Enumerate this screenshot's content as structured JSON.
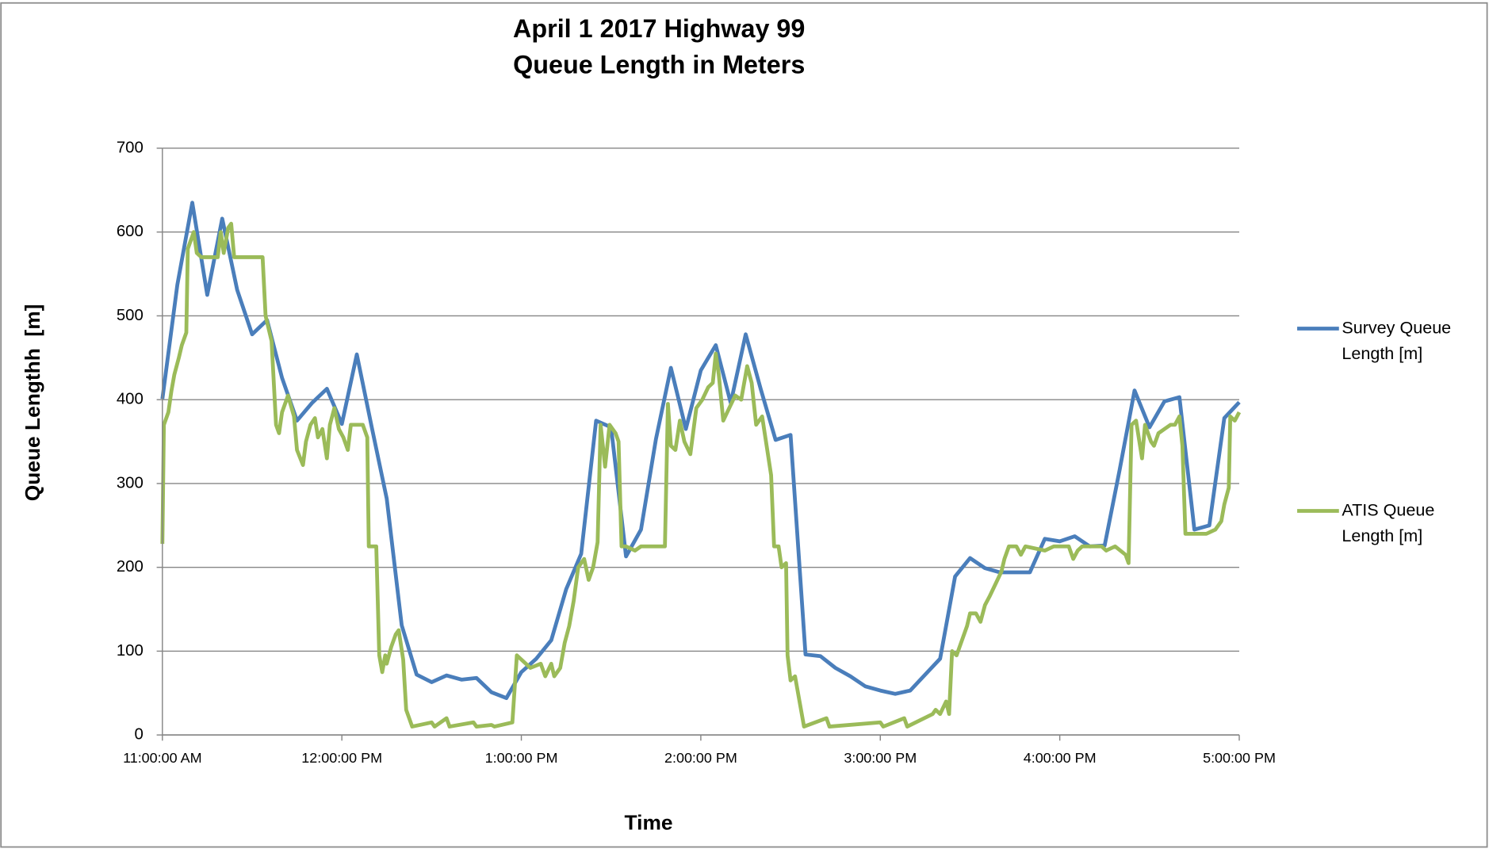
{
  "chart_data": {
    "type": "line",
    "title": [
      "April 1 2017 Highway 99",
      "Queue Length in Meters"
    ],
    "x_label": "Time",
    "y_label": "Queue Lengthh  [m]",
    "xlim": [
      "11:00:00",
      "17:00:00"
    ],
    "xticks": [
      {
        "value": "11:00:00",
        "label": "11:00:00 AM"
      },
      {
        "value": "12:00:00",
        "label": "12:00:00 PM"
      },
      {
        "value": "13:00:00",
        "label": "1:00:00 PM"
      },
      {
        "value": "14:00:00",
        "label": "2:00:00 PM"
      },
      {
        "value": "15:00:00",
        "label": "3:00:00 PM"
      },
      {
        "value": "16:00:00",
        "label": "4:00:00 PM"
      },
      {
        "value": "17:00:00",
        "label": "5:00:00 PM"
      }
    ],
    "ylim": [
      0,
      700
    ],
    "yticks": [
      0,
      100,
      200,
      300,
      400,
      500,
      600,
      700
    ],
    "grid": true,
    "legend": "right",
    "series": [
      {
        "name": "Survey Queue Length [m]",
        "color": "#4a7ebb",
        "x": [
          "11:00:00",
          "11:05:00",
          "11:10:00",
          "11:15:00",
          "11:20:00",
          "11:25:00",
          "11:30:00",
          "11:35:00",
          "11:40:00",
          "11:45:00",
          "11:50:00",
          "11:55:00",
          "12:00:00",
          "12:05:00",
          "12:10:00",
          "12:15:00",
          "12:20:00",
          "12:25:00",
          "12:30:00",
          "12:35:00",
          "12:40:00",
          "12:45:00",
          "12:50:00",
          "12:55:00",
          "13:00:00",
          "13:05:00",
          "13:10:00",
          "13:15:00",
          "13:20:00",
          "13:25:00",
          "13:30:00",
          "13:35:00",
          "13:40:00",
          "13:45:00",
          "13:50:00",
          "13:55:00",
          "14:00:00",
          "14:05:00",
          "14:10:00",
          "14:15:00",
          "14:20:00",
          "14:25:00",
          "14:30:00",
          "14:35:00",
          "14:40:00",
          "14:45:00",
          "14:50:00",
          "14:55:00",
          "15:00:00",
          "15:05:00",
          "15:10:00",
          "15:15:00",
          "15:20:00",
          "15:25:00",
          "15:30:00",
          "15:35:00",
          "15:40:00",
          "15:45:00",
          "15:50:00",
          "15:55:00",
          "16:00:00",
          "16:05:00",
          "16:10:00",
          "16:15:00",
          "16:20:00",
          "16:25:00",
          "16:30:00",
          "16:35:00",
          "16:40:00",
          "16:45:00",
          "16:50:00",
          "16:55:00",
          "17:00:00"
        ],
        "values": [
          401,
          537,
          635,
          525,
          616,
          531,
          478,
          495,
          426,
          375,
          396,
          413,
          371,
          454,
          367,
          282,
          131,
          72,
          63,
          71,
          66,
          68,
          51,
          44,
          75,
          91,
          113,
          174,
          216,
          375,
          367,
          213,
          245,
          353,
          438,
          365,
          435,
          465,
          396,
          478,
          413,
          352,
          358,
          96,
          94,
          80,
          70,
          58,
          53,
          49,
          53,
          72,
          91,
          189,
          211,
          199,
          194,
          194,
          194,
          234,
          231,
          237,
          225,
          226,
          316,
          411,
          367,
          398,
          403,
          245,
          250,
          378,
          397
        ]
      },
      {
        "name": "ATIS Queue Length [m]",
        "color": "#9bbb59",
        "x": [
          "11:00:00",
          "11:00:30",
          "11:02:00",
          "11:03:00",
          "11:04:00",
          "11:05:30",
          "11:06:30",
          "11:08:00",
          "11:08:30",
          "11:10:30",
          "11:11:30",
          "11:13:00",
          "11:18:30",
          "11:19:30",
          "11:20:30",
          "11:22:00",
          "11:23:00",
          "11:24:00",
          "11:33:30",
          "11:34:30",
          "11:36:30",
          "11:38:00",
          "11:39:00",
          "11:40:00",
          "11:42:00",
          "11:44:00",
          "11:45:00",
          "11:47:00",
          "11:48:00",
          "11:49:30",
          "11:51:00",
          "11:52:00",
          "11:53:30",
          "11:55:00",
          "11:56:00",
          "11:57:30",
          "11:59:00",
          "12:00:30",
          "12:02:00",
          "12:03:00",
          "12:07:00",
          "12:08:30",
          "12:09:00",
          "12:11:30",
          "12:12:30",
          "12:13:30",
          "12:14:30",
          "12:15:00",
          "12:16:30",
          "12:18:00",
          "12:19:00",
          "12:20:30",
          "12:21:30",
          "12:22:30",
          "12:23:30",
          "12:30:00",
          "12:31:00",
          "12:35:00",
          "12:36:00",
          "12:44:00",
          "12:45:00",
          "12:50:00",
          "12:51:00",
          "12:57:00",
          "12:58:30",
          "13:00:00",
          "13:03:00",
          "13:06:30",
          "13:08:00",
          "13:10:00",
          "13:11:00",
          "13:13:00",
          "13:14:30",
          "13:16:00",
          "13:17:30",
          "13:19:00",
          "13:21:00",
          "13:22:30",
          "13:24:00",
          "13:25:30",
          "13:26:30",
          "13:28:00",
          "13:29:30",
          "13:31:30",
          "13:32:30",
          "13:33:30",
          "13:35:00",
          "13:38:00",
          "13:40:00",
          "13:48:00",
          "13:49:00",
          "13:50:00",
          "13:51:30",
          "13:53:00",
          "13:54:30",
          "13:56:30",
          "13:58:30",
          "14:00:30",
          "14:02:30",
          "14:04:00",
          "14:05:00",
          "14:06:00",
          "14:07:30",
          "14:09:30",
          "14:11:30",
          "14:13:30",
          "14:15:30",
          "14:17:00",
          "14:18:30",
          "14:20:30",
          "14:22:00",
          "14:23:30",
          "14:24:30",
          "14:26:00",
          "14:27:00",
          "14:28:30",
          "14:29:00",
          "14:30:00",
          "14:31:30",
          "14:33:00",
          "14:34:30",
          "14:42:00",
          "14:43:00",
          "15:00:00",
          "15:01:00",
          "15:08:00",
          "15:09:00",
          "15:17:30",
          "15:18:30",
          "15:20:00",
          "15:22:00",
          "15:23:00",
          "15:24:00",
          "15:25:30",
          "15:27:30",
          "15:29:00",
          "15:30:00",
          "15:32:00",
          "15:33:30",
          "15:35:00",
          "15:36:30",
          "15:38:30",
          "15:40:30",
          "15:41:30",
          "15:43:00",
          "15:45:30",
          "15:47:00",
          "15:48:30",
          "15:55:00",
          "15:58:00",
          "16:03:00",
          "16:04:30",
          "16:06:00",
          "16:07:30",
          "16:14:00",
          "16:15:30",
          "16:18:30",
          "16:22:00",
          "16:23:00",
          "16:24:00",
          "16:25:30",
          "16:27:30",
          "16:28:30",
          "16:30:30",
          "16:31:30",
          "16:33:00",
          "16:35:00",
          "16:37:00",
          "16:38:30",
          "16:40:00",
          "16:41:00",
          "16:42:00",
          "16:44:00",
          "16:49:00",
          "16:52:00",
          "16:54:00",
          "16:55:00",
          "16:56:30",
          "16:57:00",
          "16:58:30",
          "17:00:00"
        ],
        "values": [
          228,
          370,
          385,
          410,
          430,
          450,
          465,
          480,
          580,
          600,
          575,
          570,
          570,
          600,
          575,
          605,
          610,
          570,
          570,
          500,
          470,
          370,
          360,
          385,
          405,
          380,
          340,
          322,
          350,
          370,
          378,
          355,
          365,
          330,
          370,
          390,
          365,
          355,
          340,
          370,
          370,
          355,
          225,
          225,
          95,
          75,
          95,
          85,
          105,
          120,
          125,
          90,
          30,
          20,
          10,
          15,
          10,
          20,
          10,
          15,
          10,
          12,
          10,
          15,
          95,
          90,
          80,
          85,
          70,
          85,
          70,
          80,
          110,
          130,
          160,
          200,
          210,
          185,
          200,
          230,
          370,
          320,
          370,
          360,
          350,
          225,
          225,
          220,
          225,
          225,
          395,
          345,
          340,
          375,
          350,
          335,
          390,
          400,
          415,
          420,
          455,
          430,
          375,
          390,
          405,
          400,
          440,
          420,
          370,
          380,
          345,
          310,
          225,
          225,
          200,
          205,
          95,
          65,
          70,
          40,
          10,
          20,
          10,
          15,
          10,
          20,
          10,
          25,
          30,
          25,
          40,
          25,
          100,
          95,
          115,
          130,
          145,
          145,
          135,
          155,
          165,
          180,
          195,
          210,
          225,
          225,
          215,
          225,
          220,
          225,
          225,
          210,
          220,
          225,
          225,
          220,
          225,
          215,
          205,
          370,
          375,
          330,
          370,
          350,
          345,
          360,
          365,
          370,
          370,
          380,
          345,
          240,
          240,
          240,
          245,
          255,
          275,
          295,
          380,
          375,
          385
        ]
      }
    ]
  }
}
